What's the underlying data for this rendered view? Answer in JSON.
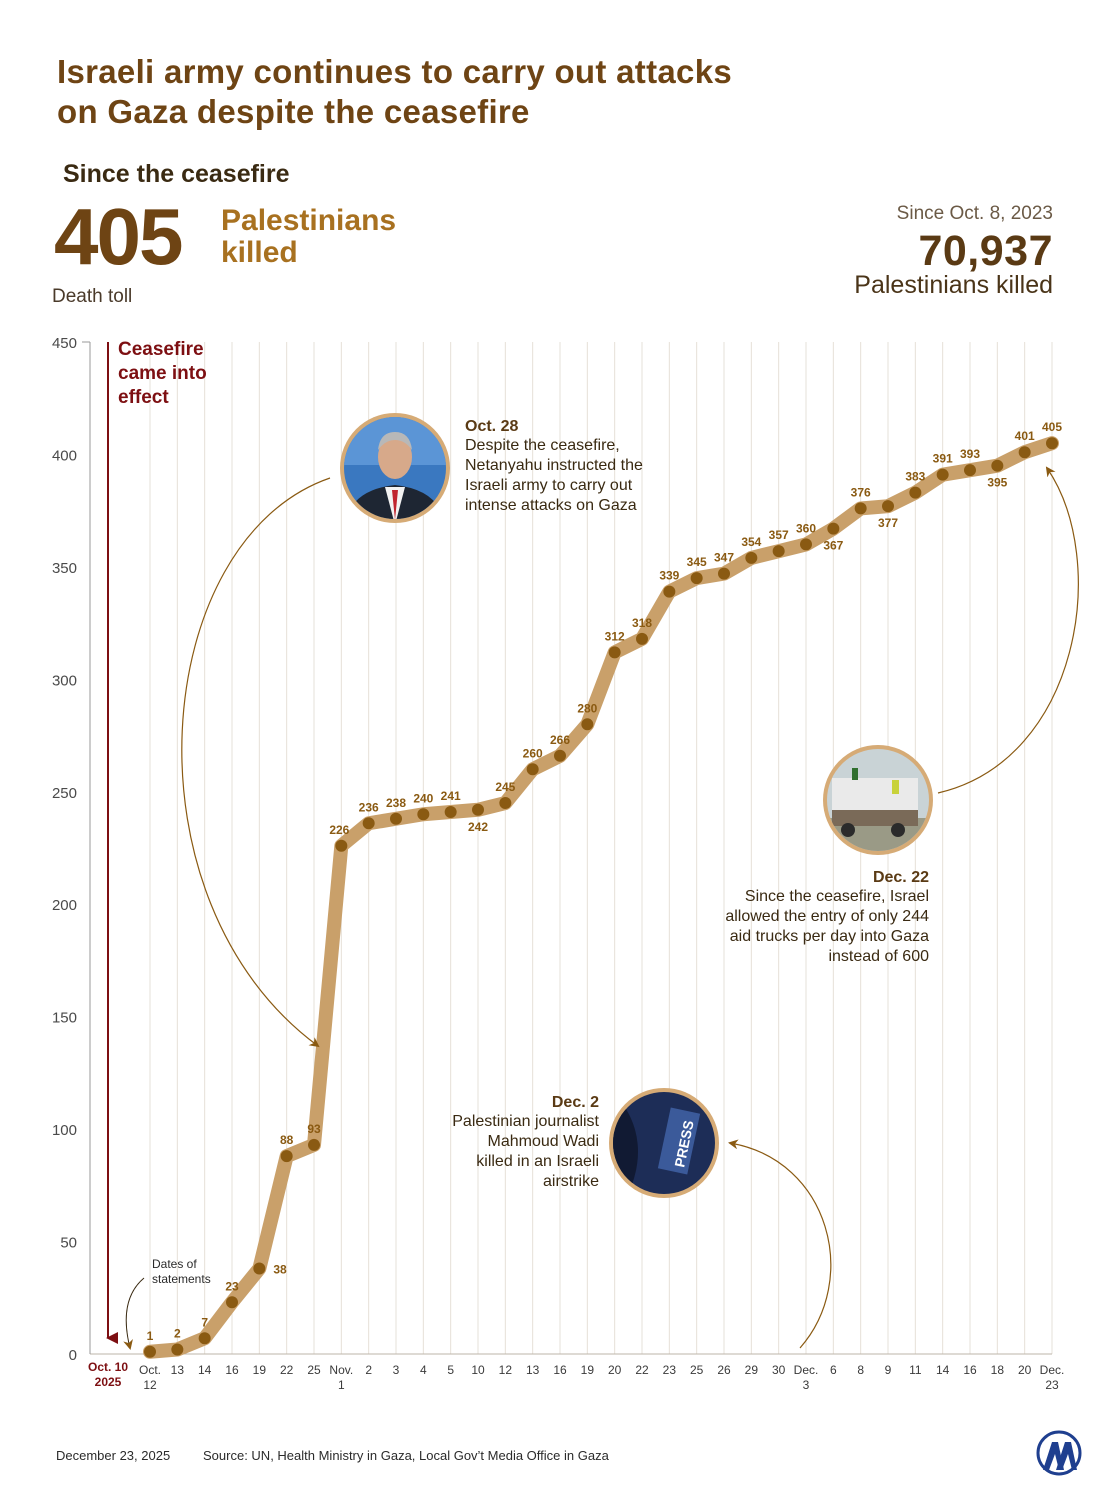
{
  "title": {
    "line1": "Israeli army continues to carry out attacks",
    "line2": "on Gaza despite the ceasefire"
  },
  "headline": {
    "since_ceasefire": "Since the ceasefire",
    "killed_since_ceasefire": "405",
    "label_line1": "Palestinians",
    "label_line2": "killed",
    "since_oct8": "Since Oct. 8, 2023",
    "killed_since_oct8": "70,937",
    "killed_since_oct8_label": "Palestinians killed"
  },
  "ceasefire_marker": {
    "line1": "Ceasefire",
    "line2": "came into",
    "line3": "effect",
    "date_line1": "Oct. 10",
    "date_line2": "2025"
  },
  "dates_of_statements_note": {
    "line1": "Dates of",
    "line2": "statements"
  },
  "annotations": [
    {
      "title": "Oct. 28",
      "lines": [
        "Despite the ceasefire,",
        "Netanyahu instructed the",
        "Israeli army to carry out",
        "intense attacks on Gaza"
      ]
    },
    {
      "title": "Dec. 22",
      "lines": [
        "Since the ceasefire, Israel",
        "allowed the entry of only 244",
        "aid trucks per day into Gaza",
        "instead of 600"
      ]
    },
    {
      "title": "Dec. 2",
      "lines": [
        "Palestinian journalist",
        "Mahmoud Wadi",
        "killed in an Israeli",
        "airstrike"
      ]
    }
  ],
  "photos": {
    "netanyahu": "portrait-photo",
    "trucks": "aid-trucks-photo",
    "press": "press-vest-photo",
    "press_text": "PRESS"
  },
  "chart_data": {
    "type": "line",
    "title": "",
    "ylabel": "Death toll",
    "xlabel": "Dates of statements",
    "ylim": [
      0,
      450
    ],
    "yticks": [
      0,
      50,
      100,
      150,
      200,
      250,
      300,
      350,
      400,
      450
    ],
    "x_tick_labels": [
      [
        "Oct.",
        "12"
      ],
      [
        "13"
      ],
      [
        "14"
      ],
      [
        "16"
      ],
      [
        "19"
      ],
      [
        "22"
      ],
      [
        "25"
      ],
      [
        "Nov.",
        "1"
      ],
      [
        "2"
      ],
      [
        "3"
      ],
      [
        "4"
      ],
      [
        "5"
      ],
      [
        "10"
      ],
      [
        "12"
      ],
      [
        "13"
      ],
      [
        "16"
      ],
      [
        "19"
      ],
      [
        "20"
      ],
      [
        "22"
      ],
      [
        "23"
      ],
      [
        "25"
      ],
      [
        "26"
      ],
      [
        "29"
      ],
      [
        "30"
      ],
      [
        "Dec.",
        "3"
      ],
      [
        "6"
      ],
      [
        "8"
      ],
      [
        "9"
      ],
      [
        "11"
      ],
      [
        "14"
      ],
      [
        "16"
      ],
      [
        "18"
      ],
      [
        "20"
      ],
      [
        "Dec.",
        "23"
      ]
    ],
    "values": [
      1,
      2,
      7,
      23,
      38,
      88,
      93,
      226,
      236,
      238,
      240,
      241,
      242,
      245,
      260,
      266,
      280,
      312,
      318,
      339,
      345,
      347,
      354,
      357,
      360,
      367,
      376,
      377,
      383,
      391,
      393,
      395,
      401,
      405
    ],
    "label_below": [
      false,
      false,
      false,
      false,
      true,
      false,
      false,
      false,
      false,
      false,
      false,
      false,
      true,
      false,
      false,
      false,
      false,
      false,
      false,
      false,
      false,
      false,
      false,
      false,
      false,
      true,
      false,
      true,
      false,
      false,
      false,
      true,
      false,
      false
    ],
    "colors": {
      "line": "#c9a06a",
      "point": "#8a5a12",
      "label": "#8a5a12",
      "ceasefire": "#7d0f12",
      "grid": "#e6e0d8"
    }
  },
  "footer": {
    "date": "December 23, 2025",
    "source": "Source: UN, Health Ministry in Gaza, Local Gov’t Media Office in Gaza",
    "logo": "aa-logo-icon"
  }
}
